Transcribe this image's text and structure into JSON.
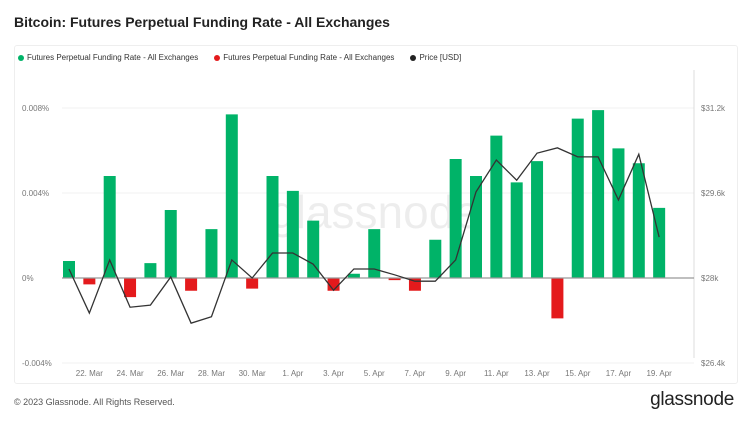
{
  "title": "Bitcoin: Futures Perpetual Funding Rate - All Exchanges",
  "footer": "© 2023 Glassnode. All Rights Reserved.",
  "brand": "glassnode",
  "watermark": "glassnode",
  "colors": {
    "positive": "#00b368",
    "negative": "#e41a1c",
    "price": "#333333"
  },
  "chart_data": {
    "type": "bar",
    "categories": [
      "21 Mar",
      "22 Mar",
      "23 Mar",
      "24 Mar",
      "25 Mar",
      "26 Mar",
      "27 Mar",
      "28 Mar",
      "29 Mar",
      "30 Mar",
      "31 Mar",
      "1 Apr",
      "2 Apr",
      "3 Apr",
      "4 Apr",
      "5 Apr",
      "6 Apr",
      "7 Apr",
      "8 Apr",
      "9 Apr",
      "10 Apr",
      "11 Apr",
      "12 Apr",
      "13 Apr",
      "14 Apr",
      "15 Apr",
      "16 Apr",
      "17 Apr",
      "18 Apr",
      "19 Apr"
    ],
    "x_tick_labels": [
      "22. Mar",
      "24. Mar",
      "26. Mar",
      "28. Mar",
      "30. Mar",
      "1. Apr",
      "3. Apr",
      "5. Apr",
      "7. Apr",
      "9. Apr",
      "11. Apr",
      "13. Apr",
      "15. Apr",
      "17. Apr",
      "19. Apr"
    ],
    "series": [
      {
        "name": "Futures Perpetual Funding Rate - All Exchanges",
        "axis": "left",
        "unit": "%",
        "values": [
          0.0008,
          -0.0003,
          0.0048,
          -0.0009,
          0.0007,
          0.0032,
          -0.0006,
          0.0023,
          0.0077,
          -0.0005,
          0.0048,
          0.0041,
          0.0027,
          -0.0006,
          0.0002,
          0.0023,
          -0.0001,
          -0.0006,
          0.0018,
          0.0056,
          0.0048,
          0.0067,
          0.0045,
          0.0055,
          -0.0019,
          0.0075,
          0.0079,
          0.0061,
          0.0054,
          0.0033
        ]
      },
      {
        "name": "Price [USD]",
        "type": "line",
        "axis": "right",
        "values": [
          28170,
          27340,
          28340,
          27450,
          27490,
          28020,
          27150,
          27270,
          28340,
          28000,
          28470,
          28470,
          28260,
          27770,
          28170,
          28170,
          28060,
          27940,
          27940,
          28340,
          29620,
          30220,
          29840,
          30350,
          30450,
          30280,
          30280,
          29470,
          30330,
          28770
        ]
      }
    ],
    "legend": [
      {
        "label": "Futures Perpetual Funding Rate - All Exchanges",
        "color": "#00b368"
      },
      {
        "label": "Futures Perpetual Funding Rate - All Exchanges",
        "color": "#e41a1c"
      },
      {
        "label": "Price [USD]",
        "color": "#222222"
      }
    ],
    "legend_placement": "top-left",
    "ylim": [
      -0.0045,
      0.0098
    ],
    "yticks": [
      {
        "v": 0.008,
        "label": "0.008%"
      },
      {
        "v": 0.004,
        "label": "0.004%"
      },
      {
        "v": 0,
        "label": "0%"
      },
      {
        "v": -0.004,
        "label": "-0.004%"
      }
    ],
    "y2lim": [
      26000,
      31900
    ],
    "y2ticks": [
      {
        "v": 31200,
        "label": "$31.2k"
      },
      {
        "v": 29600,
        "label": "$29.6k"
      },
      {
        "v": 28000,
        "label": "$28k"
      },
      {
        "v": 26400,
        "label": "$26.4k"
      }
    ],
    "grid": true
  }
}
